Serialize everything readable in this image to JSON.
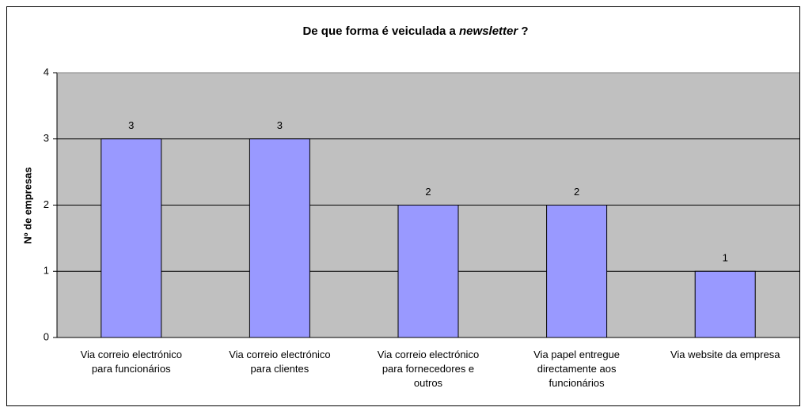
{
  "chart_data": {
    "type": "bar",
    "title": [
      {
        "text": "De que forma é veiculada a "
      },
      {
        "text": "newsletter",
        "italic": true
      },
      {
        "text": " ?"
      }
    ],
    "ylabel": "Nº de empresas",
    "categories": [
      [
        "Via correio electrónico",
        "para funcionários"
      ],
      [
        "Via correio electrónico",
        "para clientes"
      ],
      [
        "Via correio electrónico",
        "para fornecedores e",
        "outros"
      ],
      [
        "Via papel entregue",
        "directamente aos",
        "funcionários"
      ],
      [
        "Via website da empresa"
      ]
    ],
    "values": [
      3,
      3,
      2,
      2,
      1
    ],
    "color": "#9999ff",
    "ylim": [
      0,
      4
    ],
    "yticks": [
      0,
      1,
      2,
      3,
      4
    ],
    "grid": true
  }
}
